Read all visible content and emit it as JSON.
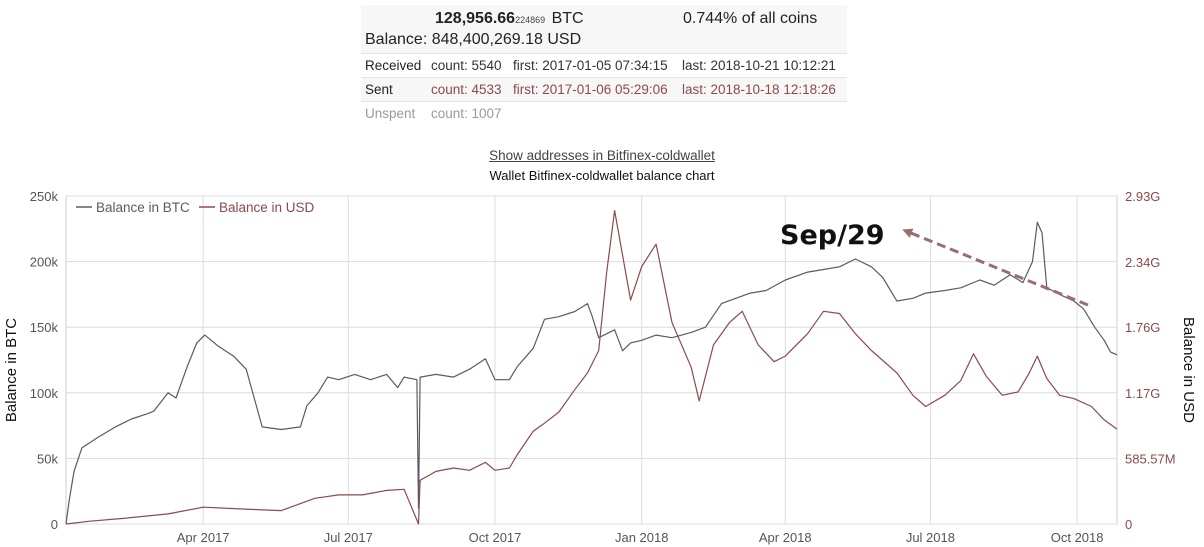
{
  "wallet_info": {
    "btc_main": "128,956.66",
    "btc_small": "224869",
    "btc_unit": "BTC",
    "share": "0.744% of all coins",
    "balance": "Balance: 848,400,269.18 USD",
    "rows": {
      "received": {
        "label": "Received",
        "count": "count: 5540",
        "first": "first: 2017-01-05 07:34:15",
        "last": "last: 2018-10-21 10:12:21"
      },
      "sent": {
        "label": "Sent",
        "count": "count: 4533",
        "first": "first: 2017-01-06 05:29:06",
        "last": "last: 2018-10-18 12:18:26"
      },
      "unspent": {
        "label": "Unspent",
        "count": "count: 1007"
      }
    }
  },
  "links": {
    "show_addresses": "Show addresses in Bitfinex-coldwallet"
  },
  "chart_data": {
    "type": "line",
    "title": "Wallet Bitfinex-coldwallet balance chart",
    "ylabel": "Balance in BTC",
    "y2label": "Balance in USD",
    "xlim": [
      "2017-01-05",
      "2018-10-26"
    ],
    "ylim": [
      0,
      250000
    ],
    "y2lim": [
      0,
      2930000000
    ],
    "x_ticks": [
      {
        "date": "2017-04-01",
        "label": "Apr 2017"
      },
      {
        "date": "2017-07-01",
        "label": "Jul 2017"
      },
      {
        "date": "2017-10-01",
        "label": "Oct 2017"
      },
      {
        "date": "2018-01-01",
        "label": "Jan 2018"
      },
      {
        "date": "2018-04-01",
        "label": "Apr 2018"
      },
      {
        "date": "2018-07-01",
        "label": "Jul 2018"
      },
      {
        "date": "2018-10-01",
        "label": "Oct 2018"
      }
    ],
    "y_ticks": [
      {
        "value": 0,
        "label": "0"
      },
      {
        "value": 50000,
        "label": "50k"
      },
      {
        "value": 100000,
        "label": "100k"
      },
      {
        "value": 150000,
        "label": "150k"
      },
      {
        "value": 200000,
        "label": "200k"
      },
      {
        "value": 250000,
        "label": "250k"
      }
    ],
    "y2_ticks": [
      {
        "value": 0,
        "label": "0"
      },
      {
        "value": 585570000,
        "label": "585.57M"
      },
      {
        "value": 1170000000,
        "label": "1.17G"
      },
      {
        "value": 1760000000,
        "label": "1.76G"
      },
      {
        "value": 2340000000,
        "label": "2.34G"
      },
      {
        "value": 2930000000,
        "label": "2.93G"
      }
    ],
    "grid": true,
    "legend_position": "top-left",
    "annotation": {
      "text": "Sep/29",
      "date": "2018-09-29"
    },
    "series": [
      {
        "name": "Balance in BTC",
        "axis": "left",
        "color": "#5a5a66",
        "points": [
          [
            "2017-01-05",
            0
          ],
          [
            "2017-01-07",
            18000
          ],
          [
            "2017-01-10",
            40000
          ],
          [
            "2017-01-15",
            58000
          ],
          [
            "2017-01-25",
            66000
          ],
          [
            "2017-02-05",
            74000
          ],
          [
            "2017-02-15",
            80000
          ],
          [
            "2017-02-25",
            84000
          ],
          [
            "2017-03-01",
            86000
          ],
          [
            "2017-03-10",
            100000
          ],
          [
            "2017-03-15",
            96000
          ],
          [
            "2017-03-22",
            120000
          ],
          [
            "2017-03-28",
            138000
          ],
          [
            "2017-04-02",
            144000
          ],
          [
            "2017-04-10",
            136000
          ],
          [
            "2017-04-20",
            128000
          ],
          [
            "2017-04-28",
            118000
          ],
          [
            "2017-05-03",
            96000
          ],
          [
            "2017-05-08",
            74000
          ],
          [
            "2017-05-20",
            72000
          ],
          [
            "2017-06-01",
            74000
          ],
          [
            "2017-06-05",
            90000
          ],
          [
            "2017-06-12",
            100000
          ],
          [
            "2017-06-18",
            112000
          ],
          [
            "2017-06-25",
            110000
          ],
          [
            "2017-07-05",
            114000
          ],
          [
            "2017-07-15",
            110000
          ],
          [
            "2017-07-25",
            114000
          ],
          [
            "2017-08-01",
            104000
          ],
          [
            "2017-08-05",
            112000
          ],
          [
            "2017-08-13",
            110000
          ],
          [
            "2017-08-14",
            12000
          ],
          [
            "2017-08-15",
            112000
          ],
          [
            "2017-08-25",
            114000
          ],
          [
            "2017-09-05",
            112000
          ],
          [
            "2017-09-15",
            118000
          ],
          [
            "2017-09-25",
            126000
          ],
          [
            "2017-10-01",
            110000
          ],
          [
            "2017-10-10",
            110000
          ],
          [
            "2017-10-15",
            120000
          ],
          [
            "2017-10-25",
            134000
          ],
          [
            "2017-11-01",
            156000
          ],
          [
            "2017-11-10",
            158000
          ],
          [
            "2017-11-20",
            162000
          ],
          [
            "2017-11-28",
            168000
          ],
          [
            "2017-12-01",
            158000
          ],
          [
            "2017-12-05",
            142000
          ],
          [
            "2017-12-15",
            148000
          ],
          [
            "2017-12-20",
            132000
          ],
          [
            "2017-12-25",
            138000
          ],
          [
            "2018-01-01",
            140000
          ],
          [
            "2018-01-10",
            144000
          ],
          [
            "2018-01-20",
            142000
          ],
          [
            "2018-02-01",
            146000
          ],
          [
            "2018-02-10",
            150000
          ],
          [
            "2018-02-20",
            168000
          ],
          [
            "2018-03-01",
            172000
          ],
          [
            "2018-03-10",
            176000
          ],
          [
            "2018-03-20",
            178000
          ],
          [
            "2018-04-01",
            186000
          ],
          [
            "2018-04-15",
            192000
          ],
          [
            "2018-04-25",
            194000
          ],
          [
            "2018-05-05",
            196000
          ],
          [
            "2018-05-15",
            202000
          ],
          [
            "2018-05-25",
            196000
          ],
          [
            "2018-06-01",
            188000
          ],
          [
            "2018-06-10",
            170000
          ],
          [
            "2018-06-20",
            172000
          ],
          [
            "2018-06-28",
            176000
          ],
          [
            "2018-07-10",
            178000
          ],
          [
            "2018-07-20",
            180000
          ],
          [
            "2018-08-01",
            186000
          ],
          [
            "2018-08-10",
            182000
          ],
          [
            "2018-08-20",
            190000
          ],
          [
            "2018-08-28",
            184000
          ],
          [
            "2018-09-03",
            200000
          ],
          [
            "2018-09-06",
            230000
          ],
          [
            "2018-09-09",
            222000
          ],
          [
            "2018-09-12",
            180000
          ],
          [
            "2018-09-20",
            175000
          ],
          [
            "2018-09-29",
            170000
          ],
          [
            "2018-10-05",
            164000
          ],
          [
            "2018-10-12",
            150000
          ],
          [
            "2018-10-18",
            140000
          ],
          [
            "2018-10-22",
            131000
          ],
          [
            "2018-10-26",
            129000
          ]
        ]
      },
      {
        "name": "Balance in USD",
        "axis": "right",
        "color": "#8c4a4a",
        "points": [
          [
            "2017-01-05",
            0
          ],
          [
            "2017-01-20",
            25000000
          ],
          [
            "2017-02-10",
            50000000
          ],
          [
            "2017-03-10",
            90000000
          ],
          [
            "2017-04-01",
            150000000
          ],
          [
            "2017-05-01",
            130000000
          ],
          [
            "2017-05-20",
            120000000
          ],
          [
            "2017-06-10",
            230000000
          ],
          [
            "2017-06-25",
            260000000
          ],
          [
            "2017-07-10",
            260000000
          ],
          [
            "2017-07-25",
            300000000
          ],
          [
            "2017-08-05",
            310000000
          ],
          [
            "2017-08-14",
            0
          ],
          [
            "2017-08-15",
            390000000
          ],
          [
            "2017-08-25",
            470000000
          ],
          [
            "2017-09-05",
            500000000
          ],
          [
            "2017-09-15",
            480000000
          ],
          [
            "2017-09-25",
            550000000
          ],
          [
            "2017-10-01",
            480000000
          ],
          [
            "2017-10-10",
            500000000
          ],
          [
            "2017-10-15",
            620000000
          ],
          [
            "2017-10-25",
            830000000
          ],
          [
            "2017-11-01",
            900000000
          ],
          [
            "2017-11-10",
            1000000000
          ],
          [
            "2017-11-20",
            1200000000
          ],
          [
            "2017-11-28",
            1350000000
          ],
          [
            "2017-12-05",
            1550000000
          ],
          [
            "2017-12-10",
            2250000000
          ],
          [
            "2017-12-15",
            2800000000
          ],
          [
            "2017-12-20",
            2400000000
          ],
          [
            "2017-12-25",
            2000000000
          ],
          [
            "2018-01-01",
            2300000000
          ],
          [
            "2018-01-10",
            2500000000
          ],
          [
            "2018-01-20",
            1800000000
          ],
          [
            "2018-02-01",
            1400000000
          ],
          [
            "2018-02-06",
            1100000000
          ],
          [
            "2018-02-15",
            1600000000
          ],
          [
            "2018-02-25",
            1800000000
          ],
          [
            "2018-03-05",
            1900000000
          ],
          [
            "2018-03-15",
            1600000000
          ],
          [
            "2018-03-25",
            1450000000
          ],
          [
            "2018-04-01",
            1500000000
          ],
          [
            "2018-04-15",
            1700000000
          ],
          [
            "2018-04-25",
            1900000000
          ],
          [
            "2018-05-05",
            1880000000
          ],
          [
            "2018-05-15",
            1700000000
          ],
          [
            "2018-05-25",
            1550000000
          ],
          [
            "2018-06-10",
            1350000000
          ],
          [
            "2018-06-20",
            1150000000
          ],
          [
            "2018-06-28",
            1050000000
          ],
          [
            "2018-07-10",
            1150000000
          ],
          [
            "2018-07-20",
            1280000000
          ],
          [
            "2018-07-28",
            1520000000
          ],
          [
            "2018-08-05",
            1320000000
          ],
          [
            "2018-08-15",
            1150000000
          ],
          [
            "2018-08-25",
            1180000000
          ],
          [
            "2018-09-01",
            1350000000
          ],
          [
            "2018-09-06",
            1500000000
          ],
          [
            "2018-09-12",
            1300000000
          ],
          [
            "2018-09-20",
            1150000000
          ],
          [
            "2018-09-29",
            1120000000
          ],
          [
            "2018-10-10",
            1050000000
          ],
          [
            "2018-10-18",
            930000000
          ],
          [
            "2018-10-26",
            848000000
          ]
        ]
      }
    ]
  }
}
